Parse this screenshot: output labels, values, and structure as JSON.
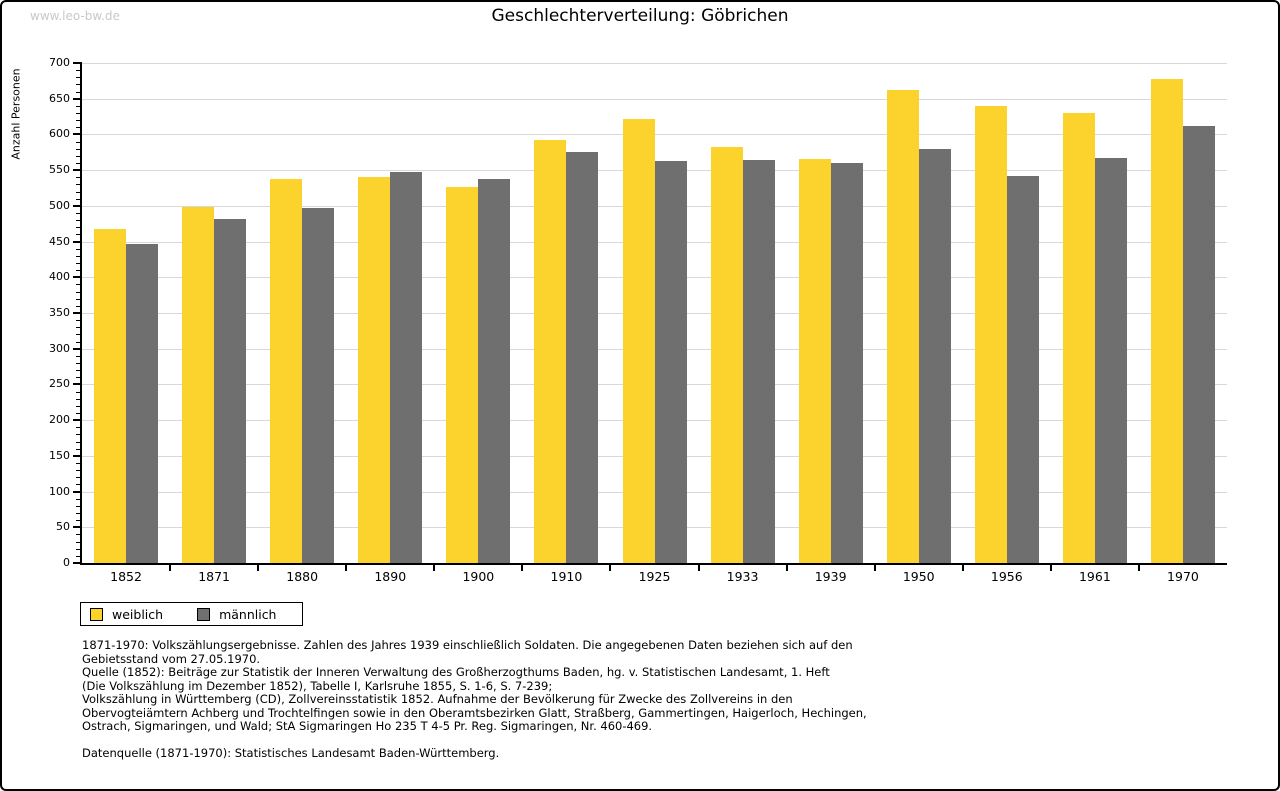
{
  "watermark": "www.leo-bw.de",
  "title": "Geschlechterverteilung: Göbrichen",
  "colors": {
    "female_bar": "#FCD32D",
    "male_bar": "#6F6F6F",
    "gridline": "#D8D8D8",
    "axis": "#000000",
    "watermark_text": "#C9C9C9"
  },
  "legend": {
    "items": [
      {
        "label": "weiblich",
        "color": "#FCD32D"
      },
      {
        "label": "männlich",
        "color": "#6F6F6F"
      }
    ]
  },
  "chart_data": {
    "type": "bar",
    "title": "Geschlechterverteilung: Göbrichen",
    "categories": [
      "1852",
      "1871",
      "1880",
      "1890",
      "1900",
      "1910",
      "1925",
      "1933",
      "1939",
      "1950",
      "1956",
      "1961",
      "1970"
    ],
    "series": [
      {
        "name": "weiblich",
        "color": "#FCD32D",
        "values": [
          467,
          498,
          537,
          540,
          526,
          592,
          621,
          583,
          566,
          662,
          640,
          630,
          678
        ]
      },
      {
        "name": "männlich",
        "color": "#6F6F6F",
        "values": [
          446,
          481,
          497,
          547,
          537,
          576,
          563,
          564,
          560,
          579,
          542,
          567,
          612
        ]
      }
    ],
    "xlabel": "",
    "ylabel": "Anzahl Personen",
    "ylim": [
      0,
      700
    ],
    "y_tick_interval": 50,
    "y_minor_tick_interval": 10,
    "grid": true,
    "legend_position": "bottom-left"
  },
  "footer": {
    "lines": [
      "1871-1970: Volkszählungsergebnisse. Zahlen des Jahres 1939 einschließlich Soldaten. Die angegebenen Daten beziehen sich auf den",
      "Gebietsstand vom 27.05.1970.",
      "Quelle (1852): Beiträge zur Statistik der Inneren Verwaltung des Großherzogthums Baden, hg. v. Statistischen Landesamt, 1. Heft",
      "(Die Volkszählung im Dezember 1852), Tabelle I, Karlsruhe 1855, S. 1-6, S. 7-239;",
      "Volkszählung in Württemberg (CD), Zollvereinsstatistik 1852. Aufnahme der Bevölkerung für Zwecke des Zollvereins in den",
      "Obervogteiämtern Achberg und Trochtelfingen sowie in den Oberamtsbezirken Glatt, Straßberg, Gammertingen, Haigerloch, Hechingen,",
      "Ostrach, Sigmaringen, und Wald; StA Sigmaringen Ho 235 T 4-5 Pr. Reg. Sigmaringen, Nr. 460-469."
    ],
    "datasource_line": "Datenquelle (1871-1970): Statistisches Landesamt Baden-Württemberg."
  }
}
